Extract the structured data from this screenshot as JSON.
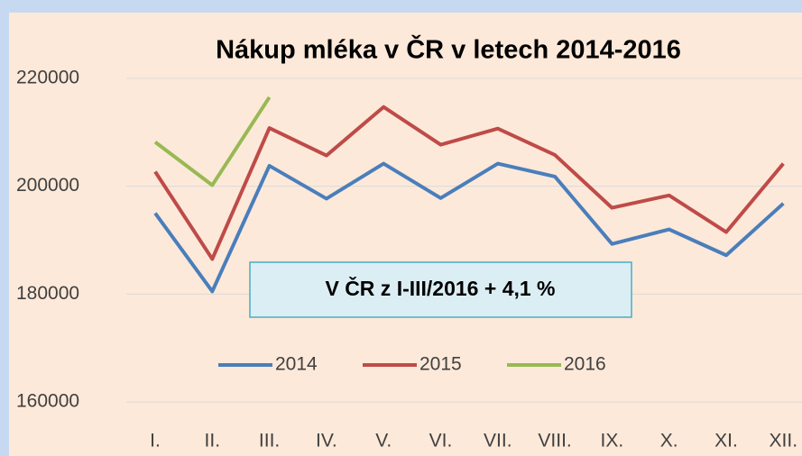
{
  "chart_data": {
    "type": "line",
    "title": "Nákup mléka v ČR v letech 2014-2016",
    "annotation": "V ČR z I-III/2016 + 4,1 %",
    "categories": [
      "I.",
      "II.",
      "III.",
      "IV.",
      "V.",
      "VI.",
      "VII.",
      "VIII.",
      "IX.",
      "X.",
      "XI.",
      "XII."
    ],
    "series": [
      {
        "name": "2014",
        "color": "#4a7ebb",
        "values": [
          195000,
          180500,
          203800,
          197700,
          204200,
          197800,
          204200,
          201800,
          189300,
          192000,
          187200,
          196800
        ]
      },
      {
        "name": "2015",
        "color": "#be4b48",
        "values": [
          202700,
          186500,
          210800,
          205700,
          214700,
          207700,
          210700,
          205800,
          196000,
          198300,
          191500,
          204200
        ]
      },
      {
        "name": "2016",
        "color": "#98b954",
        "values": [
          208200,
          200200,
          216500,
          null,
          null,
          null,
          null,
          null,
          null,
          null,
          null,
          null
        ]
      }
    ],
    "ylim": [
      160000,
      220000
    ],
    "yticks": [
      160000,
      180000,
      200000,
      220000
    ],
    "grid": true,
    "legend": "bottom"
  }
}
